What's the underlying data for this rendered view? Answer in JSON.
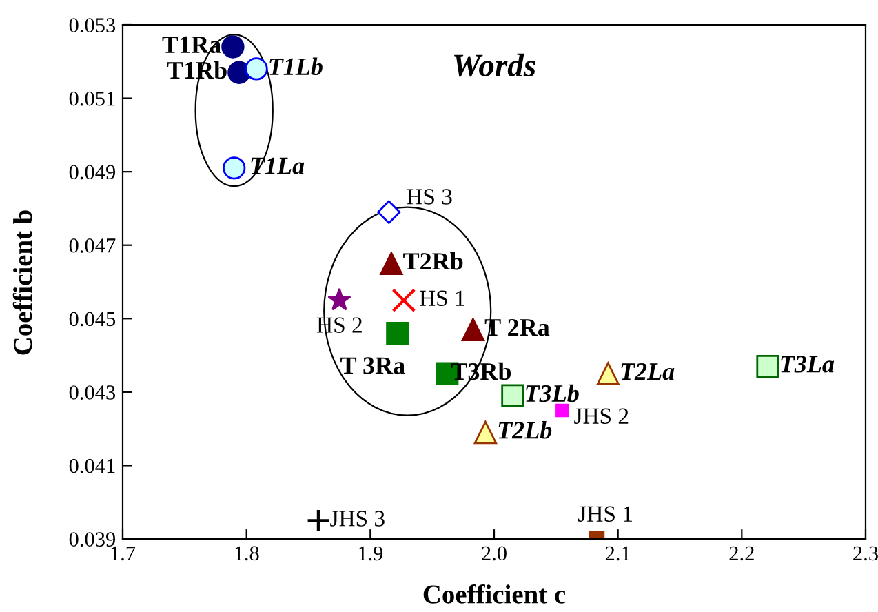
{
  "chart_data": {
    "type": "scatter",
    "title": "Words",
    "xlabel": "Coefficient c",
    "ylabel": "Coefficient b",
    "xlim": [
      1.7,
      2.3
    ],
    "xticks": [
      {
        "value": 1.7,
        "label": "1.7"
      },
      {
        "value": 1.8,
        "label": "1.8"
      },
      {
        "value": 1.9,
        "label": "1.9"
      },
      {
        "value": 2.0,
        "label": "2.0"
      },
      {
        "value": 2.1,
        "label": "2.1"
      },
      {
        "value": 2.2,
        "label": "2.2"
      },
      {
        "value": 2.3,
        "label": "2.3"
      }
    ],
    "ylim": [
      0.039,
      0.053
    ],
    "yticks": [
      {
        "value": 0.039,
        "label": "0.039"
      },
      {
        "value": 0.041,
        "label": "0.041"
      },
      {
        "value": 0.043,
        "label": "0.043"
      },
      {
        "value": 0.045,
        "label": "0.045"
      },
      {
        "value": 0.047,
        "label": "0.047"
      },
      {
        "value": 0.049,
        "label": "0.049"
      },
      {
        "value": 0.051,
        "label": "0.051"
      },
      {
        "value": 0.053,
        "label": "0.053"
      }
    ],
    "grid": false,
    "legend": false,
    "series": [
      {
        "name": "T1Ra",
        "color": "#000080",
        "marker": "circle",
        "x": [
          1.789
        ],
        "values": [
          0.0524
        ]
      },
      {
        "name": "T1Rb",
        "color": "#000080",
        "marker": "circle",
        "x": [
          1.794
        ],
        "values": [
          0.0517
        ]
      },
      {
        "name": "T1Lb",
        "color": "#ccffff",
        "marker": "circle",
        "x": [
          1.808
        ],
        "values": [
          0.0518
        ]
      },
      {
        "name": "T1La",
        "color": "#ccffff",
        "marker": "circle",
        "x": [
          1.79
        ],
        "values": [
          0.0491
        ]
      },
      {
        "name": "HS 3",
        "color": "#0000ff",
        "marker": "diamond",
        "x": [
          1.915
        ],
        "values": [
          0.0479
        ]
      },
      {
        "name": "T2Rb",
        "color": "#800000",
        "marker": "triangle",
        "x": [
          1.917
        ],
        "values": [
          0.0465
        ]
      },
      {
        "name": "HS 1",
        "color": "#ff0000",
        "marker": "x",
        "x": [
          1.927
        ],
        "values": [
          0.0455
        ]
      },
      {
        "name": "HS 2",
        "color": "#800080",
        "marker": "star",
        "x": [
          1.875
        ],
        "values": [
          0.0455
        ]
      },
      {
        "name": "T 3Ra",
        "color": "#008000",
        "marker": "square",
        "x": [
          1.922
        ],
        "values": [
          0.0446
        ]
      },
      {
        "name": "T 2Ra",
        "color": "#800000",
        "marker": "triangle",
        "x": [
          1.983
        ],
        "values": [
          0.0447
        ]
      },
      {
        "name": "T3Rb",
        "color": "#008000",
        "marker": "square",
        "x": [
          1.962
        ],
        "values": [
          0.0435
        ]
      },
      {
        "name": "T3Lb",
        "color": "#ccffcc",
        "marker": "square",
        "x": [
          2.015
        ],
        "values": [
          0.0429
        ]
      },
      {
        "name": "JHS 2",
        "color": "#ff00ff",
        "x": [
          2.055
        ],
        "values": [
          0.0425
        ]
      },
      {
        "name": "T2Lb",
        "color": "#ffff99",
        "marker": "triangle",
        "x": [
          1.993
        ],
        "values": [
          0.0419
        ]
      },
      {
        "name": "T2La",
        "color": "#ffff99",
        "marker": "triangle",
        "x": [
          2.092
        ],
        "values": [
          0.0435
        ]
      },
      {
        "name": "T3La",
        "color": "#ccffcc",
        "marker": "square",
        "x": [
          2.221
        ],
        "values": [
          0.0437
        ]
      },
      {
        "name": "JHS 3",
        "color": "#000000",
        "marker": "cross",
        "x": [
          1.858
        ],
        "values": [
          0.0395
        ]
      },
      {
        "name": "JHS 1",
        "color": "#993300",
        "marker": "square",
        "x": [
          2.083
        ],
        "values": [
          0.039
        ]
      }
    ]
  }
}
